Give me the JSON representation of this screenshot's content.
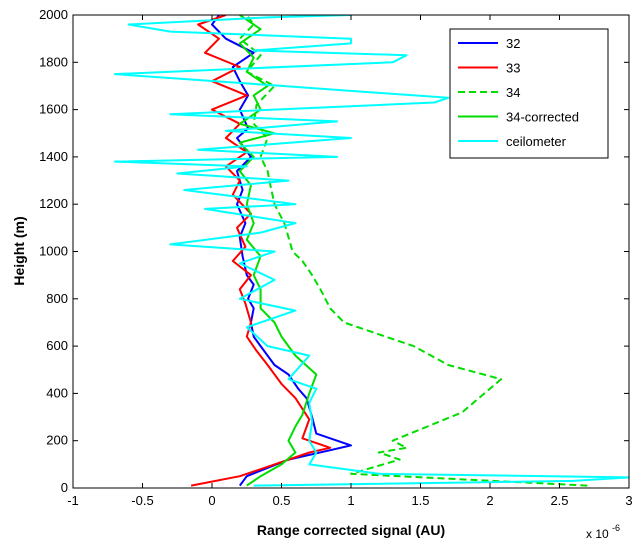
{
  "chart_data": {
    "type": "line",
    "xlabel": "Range corrected signal (AU)",
    "ylabel": "Height (m)",
    "xlim": [
      -1,
      3
    ],
    "ylim": [
      0,
      2000
    ],
    "x_multiplier": {
      "base": "x 10",
      "exponent": "-6"
    },
    "xticks": [
      -1,
      -0.5,
      0,
      0.5,
      1,
      1.5,
      2,
      2.5,
      3
    ],
    "yticks": [
      0,
      200,
      400,
      600,
      800,
      1000,
      1200,
      1400,
      1600,
      1800,
      2000
    ],
    "grid": false,
    "legend_position": "top-right",
    "series": [
      {
        "name": "32",
        "color": "#0000ff",
        "dash": "solid",
        "points": [
          [
            0.2,
            10
          ],
          [
            0.25,
            50
          ],
          [
            0.55,
            120
          ],
          [
            0.85,
            160
          ],
          [
            1.0,
            180
          ],
          [
            0.75,
            230
          ],
          [
            0.72,
            300
          ],
          [
            0.68,
            380
          ],
          [
            0.62,
            420
          ],
          [
            0.55,
            480
          ],
          [
            0.45,
            520
          ],
          [
            0.35,
            600
          ],
          [
            0.3,
            640
          ],
          [
            0.28,
            700
          ],
          [
            0.3,
            760
          ],
          [
            0.26,
            800
          ],
          [
            0.3,
            860
          ],
          [
            0.25,
            900
          ],
          [
            0.22,
            980
          ],
          [
            0.2,
            1060
          ],
          [
            0.24,
            1120
          ],
          [
            0.18,
            1200
          ],
          [
            0.22,
            1260
          ],
          [
            0.18,
            1340
          ],
          [
            0.28,
            1400
          ],
          [
            0.18,
            1480
          ],
          [
            0.26,
            1520
          ],
          [
            0.2,
            1600
          ],
          [
            0.26,
            1660
          ],
          [
            0.2,
            1720
          ],
          [
            0.15,
            1780
          ],
          [
            0.3,
            1840
          ],
          [
            0.1,
            1900
          ],
          [
            0.0,
            1960
          ],
          [
            0.05,
            2000
          ]
        ]
      },
      {
        "name": "33",
        "color": "#ff0000",
        "dash": "solid",
        "points": [
          [
            -0.15,
            10
          ],
          [
            0.2,
            50
          ],
          [
            0.45,
            100
          ],
          [
            0.7,
            150
          ],
          [
            0.85,
            170
          ],
          [
            0.65,
            210
          ],
          [
            0.7,
            290
          ],
          [
            0.6,
            380
          ],
          [
            0.5,
            440
          ],
          [
            0.4,
            520
          ],
          [
            0.32,
            580
          ],
          [
            0.25,
            640
          ],
          [
            0.28,
            700
          ],
          [
            0.24,
            780
          ],
          [
            0.2,
            840
          ],
          [
            0.28,
            900
          ],
          [
            0.15,
            960
          ],
          [
            0.24,
            1020
          ],
          [
            0.18,
            1100
          ],
          [
            0.28,
            1160
          ],
          [
            0.15,
            1240
          ],
          [
            0.2,
            1300
          ],
          [
            0.1,
            1360
          ],
          [
            0.25,
            1420
          ],
          [
            0.1,
            1480
          ],
          [
            0.2,
            1540
          ],
          [
            0.0,
            1600
          ],
          [
            0.25,
            1660
          ],
          [
            0.0,
            1720
          ],
          [
            0.2,
            1780
          ],
          [
            -0.05,
            1840
          ],
          [
            0.05,
            1900
          ],
          [
            -0.1,
            1960
          ],
          [
            0.1,
            2000
          ]
        ]
      },
      {
        "name": "34",
        "color": "#00dd00",
        "dash": "dashed",
        "points": [
          [
            2.7,
            10
          ],
          [
            1.0,
            60
          ],
          [
            1.35,
            120
          ],
          [
            1.2,
            150
          ],
          [
            1.4,
            170
          ],
          [
            1.3,
            200
          ],
          [
            1.55,
            260
          ],
          [
            1.8,
            320
          ],
          [
            2.08,
            460
          ],
          [
            1.7,
            520
          ],
          [
            1.45,
            600
          ],
          [
            1.2,
            650
          ],
          [
            0.95,
            700
          ],
          [
            0.85,
            760
          ],
          [
            0.78,
            840
          ],
          [
            0.72,
            900
          ],
          [
            0.65,
            960
          ],
          [
            0.58,
            1000
          ],
          [
            0.55,
            1060
          ],
          [
            0.52,
            1120
          ],
          [
            0.45,
            1200
          ],
          [
            0.42,
            1280
          ],
          [
            0.4,
            1340
          ],
          [
            0.35,
            1400
          ],
          [
            0.4,
            1480
          ],
          [
            0.3,
            1540
          ],
          [
            0.32,
            1620
          ],
          [
            0.45,
            1700
          ],
          [
            0.25,
            1760
          ],
          [
            0.35,
            1830
          ],
          [
            0.2,
            1900
          ],
          [
            0.3,
            1960
          ],
          [
            0.25,
            2000
          ]
        ]
      },
      {
        "name": "34-corrected",
        "color": "#00dd00",
        "dash": "solid",
        "points": [
          [
            0.25,
            10
          ],
          [
            0.35,
            50
          ],
          [
            0.5,
            100
          ],
          [
            0.6,
            150
          ],
          [
            0.55,
            200
          ],
          [
            0.6,
            260
          ],
          [
            0.65,
            310
          ],
          [
            0.7,
            400
          ],
          [
            0.75,
            480
          ],
          [
            0.6,
            560
          ],
          [
            0.5,
            640
          ],
          [
            0.45,
            700
          ],
          [
            0.35,
            760
          ],
          [
            0.35,
            840
          ],
          [
            0.3,
            900
          ],
          [
            0.35,
            980
          ],
          [
            0.25,
            1050
          ],
          [
            0.3,
            1120
          ],
          [
            0.25,
            1200
          ],
          [
            0.28,
            1280
          ],
          [
            0.2,
            1340
          ],
          [
            0.3,
            1400
          ],
          [
            0.2,
            1460
          ],
          [
            0.45,
            1500
          ],
          [
            0.2,
            1540
          ],
          [
            0.35,
            1600
          ],
          [
            0.3,
            1660
          ],
          [
            0.4,
            1700
          ],
          [
            0.25,
            1760
          ],
          [
            0.3,
            1820
          ],
          [
            0.2,
            1880
          ],
          [
            0.35,
            1940
          ],
          [
            0.2,
            2000
          ]
        ]
      },
      {
        "name": "ceilometer",
        "color": "#00ffff",
        "dash": "solid",
        "points": [
          [
            0.3,
            10
          ],
          [
            2.6,
            30
          ],
          [
            3.0,
            45
          ],
          [
            1.2,
            60
          ],
          [
            0.7,
            100
          ],
          [
            0.75,
            150
          ],
          [
            0.7,
            200
          ],
          [
            0.72,
            280
          ],
          [
            0.7,
            360
          ],
          [
            0.75,
            420
          ],
          [
            0.55,
            460
          ],
          [
            0.7,
            560
          ],
          [
            0.4,
            600
          ],
          [
            0.25,
            680
          ],
          [
            0.6,
            750
          ],
          [
            0.2,
            800
          ],
          [
            0.45,
            880
          ],
          [
            0.2,
            950
          ],
          [
            0.45,
            1000
          ],
          [
            -0.3,
            1030
          ],
          [
            0.35,
            1080
          ],
          [
            0.6,
            1120
          ],
          [
            -0.05,
            1180
          ],
          [
            0.6,
            1200
          ],
          [
            -0.2,
            1260
          ],
          [
            0.55,
            1300
          ],
          [
            -0.25,
            1330
          ],
          [
            0.25,
            1360
          ],
          [
            -0.7,
            1380
          ],
          [
            0.9,
            1400
          ],
          [
            -0.1,
            1430
          ],
          [
            1.0,
            1480
          ],
          [
            0.1,
            1510
          ],
          [
            0.9,
            1550
          ],
          [
            -0.3,
            1580
          ],
          [
            1.6,
            1630
          ],
          [
            1.7,
            1650
          ],
          [
            0.5,
            1700
          ],
          [
            -0.7,
            1750
          ],
          [
            1.3,
            1800
          ],
          [
            1.4,
            1830
          ],
          [
            0.3,
            1850
          ],
          [
            1.0,
            1880
          ],
          [
            1.0,
            1900
          ],
          [
            -0.3,
            1930
          ],
          [
            -0.6,
            1960
          ],
          [
            0.4,
            1990
          ],
          [
            1.0,
            2000
          ]
        ]
      }
    ]
  }
}
